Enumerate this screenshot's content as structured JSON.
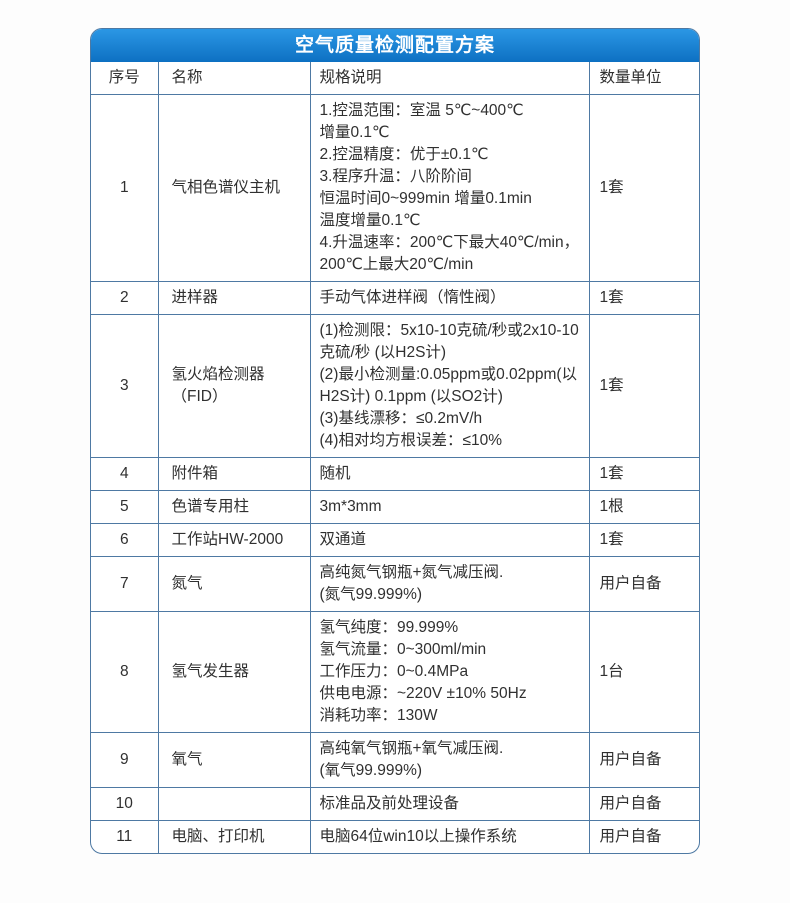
{
  "page": {
    "background": "#fdfdfd"
  },
  "table": {
    "title": "空气质量检测配置方案",
    "columns": [
      "序号",
      "名称",
      "规格说明",
      "数量单位"
    ],
    "colors": {
      "title_bg_top": "#2b97e5",
      "title_bg_bottom": "#0d70c2",
      "title_text": "#ffffff",
      "border": "#4e79a3",
      "cell_text": "#303030"
    },
    "rows": [
      {
        "no": "1",
        "name": "气相色谱仪主机",
        "spec": [
          "1.控温范围：室温 5℃~400℃",
          "增量0.1℃",
          "2.控温精度：优于±0.1℃",
          "3.程序升温：八阶阶间",
          "恒温时间0~999min 增量0.1min",
          "温度增量0.1℃",
          "4.升温速率：200℃下最大40℃/min，",
          "200℃上最大20℃/min"
        ],
        "qty": "1套"
      },
      {
        "no": "2",
        "name": "进样器",
        "spec": [
          "手动气体进样阀（惰性阀）"
        ],
        "qty": "1套"
      },
      {
        "no": "3",
        "name": "氢火焰检测器（FID）",
        "spec": [
          "(1)检测限：5x10-10克硫/秒或2x10-10克硫/秒 (以H2S计)",
          "(2)最小检测量:0.05ppm或0.02ppm(以H2S计) 0.1ppm (以SO2计)",
          "(3)基线漂移：≤0.2mV/h",
          "(4)相对均方根误差：≤10%"
        ],
        "qty": "1套"
      },
      {
        "no": "4",
        "name": "附件箱",
        "spec": [
          "随机"
        ],
        "qty": "1套"
      },
      {
        "no": "5",
        "name": "色谱专用柱",
        "spec": [
          "3m*3mm"
        ],
        "qty": "1根"
      },
      {
        "no": "6",
        "name": "工作站HW-2000",
        "spec": [
          "双通道"
        ],
        "qty": "1套"
      },
      {
        "no": "7",
        "name": "氮气",
        "spec": [
          "高纯氮气钢瓶+氮气减压阀.",
          "(氮气99.999%)"
        ],
        "qty": "用户自备"
      },
      {
        "no": "8",
        "name": "氢气发生器",
        "spec": [
          "氢气纯度：99.999%",
          "氢气流量：0~300ml/min",
          "工作压力：0~0.4MPa",
          "供电电源：~220V ±10% 50Hz",
          "消耗功率：130W"
        ],
        "qty": "1台"
      },
      {
        "no": "9",
        "name": "氧气",
        "spec": [
          "高纯氧气钢瓶+氧气减压阀.",
          "(氧气99.999%)"
        ],
        "qty": "用户自备"
      },
      {
        "no": "10",
        "name": "",
        "spec": [
          "标准品及前处理设备"
        ],
        "qty": "用户自备"
      },
      {
        "no": "11",
        "name": "电脑、打印机",
        "spec": [
          "电脑64位win10以上操作系统"
        ],
        "qty": "用户自备"
      }
    ]
  }
}
